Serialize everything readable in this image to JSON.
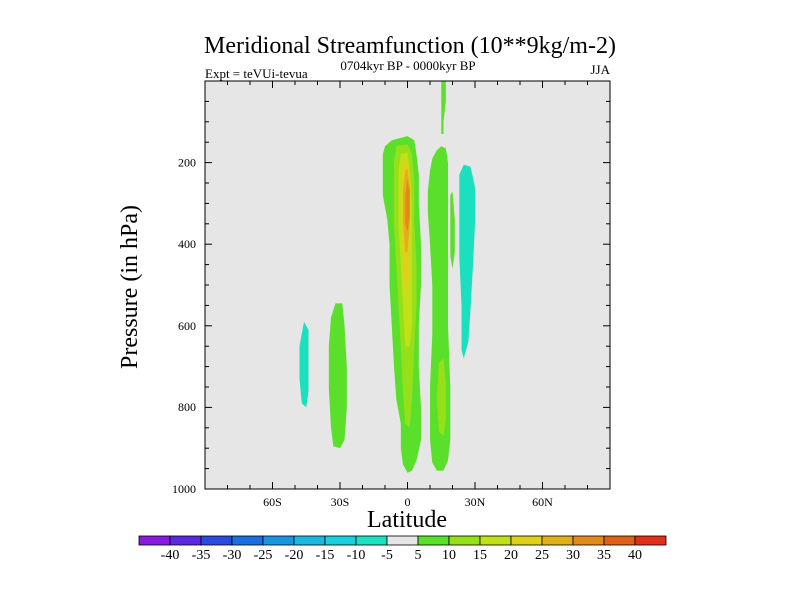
{
  "chart_data": {
    "type": "contour",
    "title": "Meridional Streamfunction (10**9kg/m-2)",
    "subtitle_left": "Expt = teVUi-tevua",
    "subtitle_center": "0704kyr BP - 0000kyr BP",
    "subtitle_right": "JJA",
    "xlabel": "Latitude",
    "ylabel": "Pressure (in hPa)",
    "xlim": [
      -90,
      90
    ],
    "ylim": [
      1000,
      0
    ],
    "x_ticks": [
      {
        "value": -60,
        "label": "60S"
      },
      {
        "value": -30,
        "label": "30S"
      },
      {
        "value": 0,
        "label": "0"
      },
      {
        "value": 30,
        "label": "30N"
      },
      {
        "value": 60,
        "label": "60N"
      }
    ],
    "y_ticks": [
      {
        "value": 200,
        "label": "200"
      },
      {
        "value": 400,
        "label": "400"
      },
      {
        "value": 600,
        "label": "600"
      },
      {
        "value": 800,
        "label": "800"
      },
      {
        "value": 1000,
        "label": "1000"
      }
    ],
    "background_color": "#e6e6e6",
    "contour_levels": [
      -40,
      -35,
      -30,
      -25,
      -20,
      -15,
      -10,
      -5,
      5,
      10,
      15,
      20,
      25,
      30,
      35,
      40
    ],
    "colorbar_labels": [
      "-40",
      "-35",
      "-30",
      "-25",
      "-20",
      "-15",
      "-10",
      "-5",
      "5",
      "10",
      "15",
      "20",
      "25",
      "30",
      "35",
      "40"
    ],
    "colorbar_colors": [
      "#8a1ae0",
      "#5a2ae0",
      "#2a4ae0",
      "#1a6ee0",
      "#1a96e0",
      "#1ab8e0",
      "#1ad0e0",
      "#1ae0c0",
      "#e6e6e6",
      "#5ae02a",
      "#96e01a",
      "#c0e01a",
      "#e0d01a",
      "#e0b01a",
      "#e08a1a",
      "#e0601a",
      "#e0301a"
    ],
    "regions": [
      {
        "name": "sh-high-lat-cell",
        "level": -5,
        "color": "#1ae0c0",
        "points": [
          [
            -48,
            650
          ],
          [
            -46,
            590
          ],
          [
            -44,
            610
          ],
          [
            -44,
            760
          ],
          [
            -45,
            800
          ],
          [
            -47,
            790
          ],
          [
            -48,
            730
          ]
        ]
      },
      {
        "name": "sh-mid-lat-cell",
        "level": 5,
        "color": "#5ae02a",
        "points": [
          [
            -34,
            580
          ],
          [
            -32,
            545
          ],
          [
            -29,
            545
          ],
          [
            -28,
            600
          ],
          [
            -27,
            700
          ],
          [
            -27,
            800
          ],
          [
            -28,
            880
          ],
          [
            -30,
            900
          ],
          [
            -33,
            895
          ],
          [
            -34,
            850
          ],
          [
            -35,
            750
          ],
          [
            -35,
            650
          ]
        ]
      },
      {
        "name": "main-cell-outer",
        "level": 5,
        "color": "#5ae02a",
        "points": [
          [
            -11,
            280
          ],
          [
            -11,
            180
          ],
          [
            -10,
            160
          ],
          [
            -7,
            145
          ],
          [
            0,
            135
          ],
          [
            3,
            145
          ],
          [
            4,
            180
          ],
          [
            5,
            230
          ],
          [
            5,
            300
          ],
          [
            6,
            400
          ],
          [
            6,
            500
          ],
          [
            5,
            600
          ],
          [
            5,
            700
          ],
          [
            6,
            800
          ],
          [
            6,
            880
          ],
          [
            4,
            930
          ],
          [
            2,
            955
          ],
          [
            0,
            960
          ],
          [
            -2,
            940
          ],
          [
            -3,
            900
          ],
          [
            -3,
            840
          ],
          [
            -5,
            780
          ],
          [
            -6,
            700
          ],
          [
            -7,
            600
          ],
          [
            -8,
            500
          ],
          [
            -8,
            400
          ],
          [
            -9,
            340
          ]
        ]
      },
      {
        "name": "main-cell-10",
        "level": 10,
        "color": "#96e01a",
        "points": [
          [
            -6,
            200
          ],
          [
            -5,
            160
          ],
          [
            0,
            155
          ],
          [
            2,
            180
          ],
          [
            3,
            250
          ],
          [
            3,
            350
          ],
          [
            4,
            450
          ],
          [
            4,
            550
          ],
          [
            3,
            650
          ],
          [
            2,
            780
          ],
          [
            1,
            850
          ],
          [
            -1,
            840
          ],
          [
            -2,
            760
          ],
          [
            -3,
            650
          ],
          [
            -4,
            550
          ],
          [
            -5,
            450
          ],
          [
            -6,
            350
          ]
        ]
      },
      {
        "name": "main-cell-15",
        "level": 15,
        "color": "#c0e01a",
        "points": [
          [
            -4,
            220
          ],
          [
            -3,
            180
          ],
          [
            0,
            175
          ],
          [
            1,
            220
          ],
          [
            2,
            300
          ],
          [
            2,
            400
          ],
          [
            2,
            500
          ],
          [
            2,
            600
          ],
          [
            1,
            650
          ],
          [
            -1,
            650
          ],
          [
            -2,
            550
          ],
          [
            -3,
            450
          ],
          [
            -4,
            350
          ]
        ]
      },
      {
        "name": "main-cell-20",
        "level": 20,
        "color": "#e0d01a",
        "points": [
          [
            -3,
            250
          ],
          [
            -2,
            200
          ],
          [
            0,
            195
          ],
          [
            1,
            240
          ],
          [
            1,
            330
          ],
          [
            1,
            450
          ],
          [
            0,
            520
          ],
          [
            -1,
            520
          ],
          [
            -2,
            430
          ],
          [
            -3,
            330
          ]
        ]
      },
      {
        "name": "main-cell-25",
        "level": 25,
        "color": "#e0b01a",
        "points": [
          [
            -2,
            270
          ],
          [
            -1,
            220
          ],
          [
            0,
            215
          ],
          [
            1,
            260
          ],
          [
            1,
            350
          ],
          [
            0,
            420
          ],
          [
            -1,
            420
          ],
          [
            -2,
            340
          ]
        ]
      },
      {
        "name": "main-cell-30",
        "level": 30,
        "color": "#e08a1a",
        "points": [
          [
            -1,
            280
          ],
          [
            0,
            240
          ],
          [
            1,
            270
          ],
          [
            1,
            330
          ],
          [
            0,
            370
          ],
          [
            -1,
            350
          ]
        ]
      },
      {
        "name": "nh-subtropical-band",
        "level": 5,
        "color": "#5ae02a",
        "points": [
          [
            9,
            320
          ],
          [
            9,
            270
          ],
          [
            10,
            220
          ],
          [
            11,
            190
          ],
          [
            13,
            170
          ],
          [
            15,
            160
          ],
          [
            17,
            165
          ],
          [
            18,
            200
          ],
          [
            18,
            300
          ],
          [
            18,
            450
          ],
          [
            18,
            600
          ],
          [
            19,
            750
          ],
          [
            19,
            880
          ],
          [
            18,
            930
          ],
          [
            16,
            955
          ],
          [
            13,
            955
          ],
          [
            11,
            935
          ],
          [
            10,
            880
          ],
          [
            10,
            750
          ],
          [
            11,
            620
          ],
          [
            11,
            500
          ],
          [
            10,
            400
          ]
        ]
      },
      {
        "name": "nh-subtropical-10",
        "level": 10,
        "color": "#96e01a",
        "points": [
          [
            14,
            690
          ],
          [
            16,
            680
          ],
          [
            17,
            740
          ],
          [
            17,
            830
          ],
          [
            16,
            870
          ],
          [
            14,
            860
          ],
          [
            13,
            780
          ]
        ]
      },
      {
        "name": "nh-upper-spike",
        "level": 5,
        "color": "#5ae02a",
        "points": [
          [
            15,
            0
          ],
          [
            17,
            0
          ],
          [
            17,
            50
          ],
          [
            16,
            100
          ],
          [
            16,
            130
          ],
          [
            15,
            130
          ],
          [
            15,
            80
          ]
        ]
      },
      {
        "name": "nh-side-spur",
        "level": 5,
        "color": "#5ae02a",
        "points": [
          [
            19,
            280
          ],
          [
            20,
            270
          ],
          [
            21,
            340
          ],
          [
            21,
            420
          ],
          [
            20,
            460
          ],
          [
            19,
            430
          ]
        ]
      },
      {
        "name": "nh-mid-lat-cell",
        "level": -5,
        "color": "#1ae0c0",
        "points": [
          [
            23,
            230
          ],
          [
            25,
            205
          ],
          [
            28,
            210
          ],
          [
            30,
            260
          ],
          [
            30,
            350
          ],
          [
            29,
            460
          ],
          [
            28,
            560
          ],
          [
            27,
            640
          ],
          [
            25,
            680
          ],
          [
            24,
            660
          ],
          [
            24,
            550
          ],
          [
            23,
            430
          ],
          [
            23,
            330
          ]
        ]
      }
    ]
  }
}
